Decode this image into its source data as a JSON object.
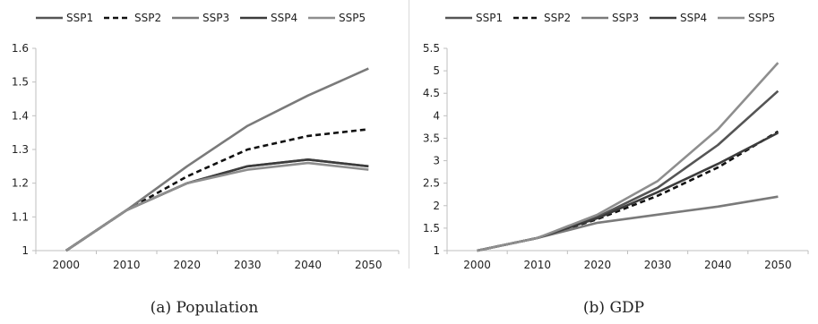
{
  "colors": {
    "SSP1": "#555555",
    "SSP2": "#111111",
    "SSP3": "#7a7a7a",
    "SSP4": "#3c3c3c",
    "SSP5": "#8e8e8e",
    "axis": "#bfbfbf",
    "grid": "#d9d9d9"
  },
  "chart_data": [
    {
      "type": "line",
      "caption": "(a)  Population",
      "x": [
        "2000",
        "2010",
        "2020",
        "2030",
        "2040",
        "2050"
      ],
      "ylim": [
        1,
        1.6
      ],
      "yticks": [
        "1",
        "1.1",
        "1.2",
        "1.3",
        "1.4",
        "1.5",
        "1.6"
      ],
      "grid": false,
      "legend_position": "top",
      "series": [
        {
          "name": "SSP1",
          "style": "solid",
          "values": [
            1.0,
            1.12,
            1.2,
            1.25,
            1.27,
            1.25
          ]
        },
        {
          "name": "SSP2",
          "style": "dashed",
          "values": [
            1.0,
            1.12,
            1.22,
            1.3,
            1.34,
            1.36
          ]
        },
        {
          "name": "SSP3",
          "style": "solid",
          "values": [
            1.0,
            1.12,
            1.25,
            1.37,
            1.46,
            1.54
          ]
        },
        {
          "name": "SSP4",
          "style": "solid",
          "values": [
            1.0,
            1.12,
            1.2,
            1.25,
            1.27,
            1.25
          ]
        },
        {
          "name": "SSP5",
          "style": "solid",
          "values": [
            1.0,
            1.12,
            1.2,
            1.24,
            1.26,
            1.24
          ]
        }
      ]
    },
    {
      "type": "line",
      "caption": "(b)  GDP",
      "x": [
        "2000",
        "2010",
        "2020",
        "2030",
        "2040",
        "2050"
      ],
      "ylim": [
        1,
        5.5
      ],
      "yticks": [
        "1",
        "1.5",
        "2",
        "2.5",
        "3",
        "3.5",
        "4",
        "4.5",
        "5",
        "5.5"
      ],
      "grid": false,
      "legend_position": "top",
      "series": [
        {
          "name": "SSP1",
          "style": "solid",
          "values": [
            1.0,
            1.28,
            1.75,
            2.4,
            3.35,
            4.55
          ]
        },
        {
          "name": "SSP2",
          "style": "dashed",
          "values": [
            1.0,
            1.28,
            1.7,
            2.22,
            2.85,
            3.65
          ]
        },
        {
          "name": "SSP3",
          "style": "solid",
          "values": [
            1.0,
            1.28,
            1.62,
            1.8,
            1.98,
            2.2
          ]
        },
        {
          "name": "SSP4",
          "style": "solid",
          "values": [
            1.0,
            1.28,
            1.72,
            2.3,
            2.93,
            3.62
          ]
        },
        {
          "name": "SSP5",
          "style": "solid",
          "values": [
            1.0,
            1.28,
            1.8,
            2.55,
            3.7,
            5.18
          ]
        }
      ]
    }
  ]
}
